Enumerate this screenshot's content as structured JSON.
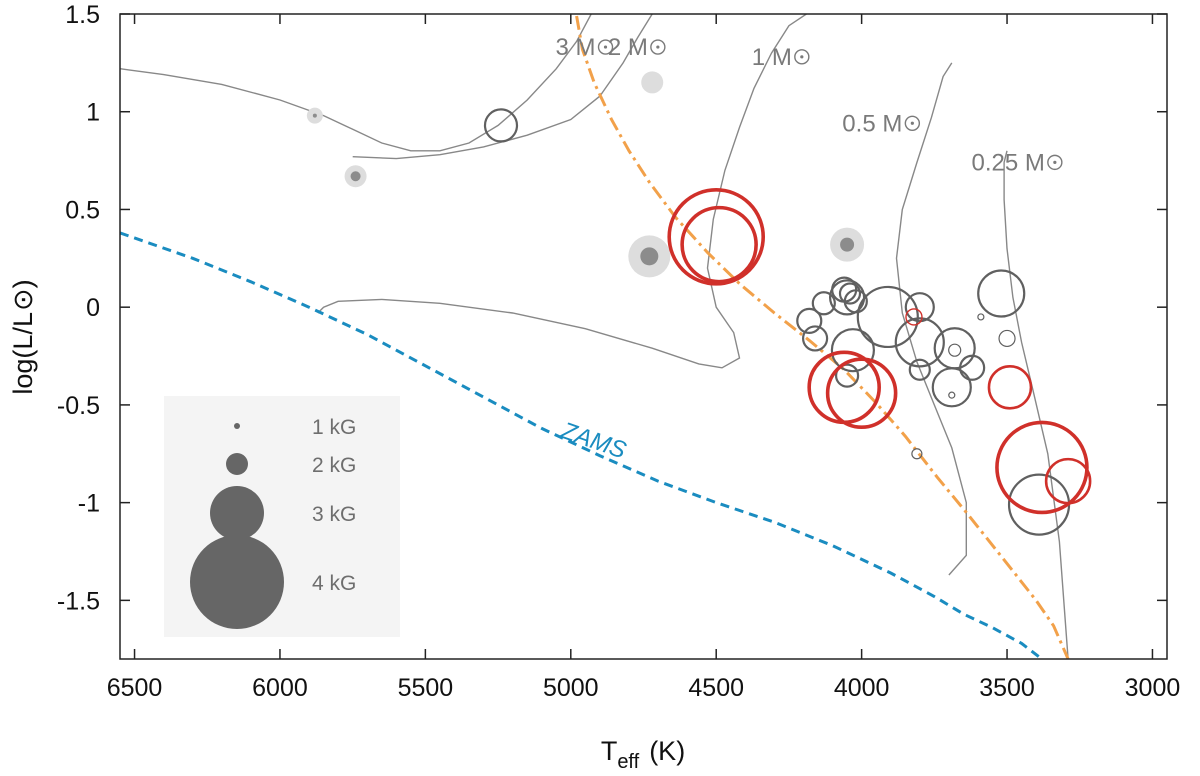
{
  "chart_data": {
    "type": "scatter",
    "title": "",
    "xlabel": {
      "main": "T",
      "sub": "eff",
      "unit": "(K)"
    },
    "ylabel": {
      "main": "log(L/L",
      "close": ")"
    },
    "xlim": [
      6550,
      2950
    ],
    "ylim": [
      -1.8,
      1.5
    ],
    "x_reversed": true,
    "grid": false,
    "xticks": [
      {
        "value": 6500,
        "label": "6500"
      },
      {
        "value": 6000,
        "label": "6000"
      },
      {
        "value": 5500,
        "label": "5500"
      },
      {
        "value": 5000,
        "label": "5000"
      },
      {
        "value": 4500,
        "label": "4500"
      },
      {
        "value": 4000,
        "label": "4000"
      },
      {
        "value": 3500,
        "label": "3500"
      },
      {
        "value": 3000,
        "label": "3000"
      }
    ],
    "yticks": [
      {
        "value": 1.5,
        "label": "1.5"
      },
      {
        "value": 1,
        "label": "1"
      },
      {
        "value": 0.5,
        "label": "0.5"
      },
      {
        "value": 0,
        "label": "0"
      },
      {
        "value": -0.5,
        "label": "-0.5"
      },
      {
        "value": -1,
        "label": "-1"
      },
      {
        "value": -1.5,
        "label": "-1.5"
      }
    ],
    "tracks": [
      {
        "label": "3 M",
        "label_at": [
          4915,
          1.29
        ],
        "color": "#888888",
        "points": [
          [
            6550,
            1.22
          ],
          [
            6400,
            1.19
          ],
          [
            6200,
            1.14
          ],
          [
            6000,
            1.06
          ],
          [
            5850,
            0.98
          ],
          [
            5750,
            0.91
          ],
          [
            5650,
            0.84
          ],
          [
            5550,
            0.8
          ],
          [
            5450,
            0.8
          ],
          [
            5350,
            0.84
          ],
          [
            5250,
            0.93
          ],
          [
            5150,
            1.06
          ],
          [
            5050,
            1.22
          ],
          [
            4980,
            1.36
          ],
          [
            4930,
            1.5
          ]
        ]
      },
      {
        "label": "2 M",
        "label_at": [
          4735,
          1.29
        ],
        "color": "#888888",
        "points": [
          [
            5750,
            0.77
          ],
          [
            5600,
            0.76
          ],
          [
            5450,
            0.78
          ],
          [
            5300,
            0.82
          ],
          [
            5150,
            0.88
          ],
          [
            5000,
            0.96
          ],
          [
            4900,
            1.08
          ],
          [
            4820,
            1.25
          ],
          [
            4770,
            1.38
          ],
          [
            4720,
            1.5
          ]
        ]
      },
      {
        "label": "1 M",
        "label_at": [
          4240,
          1.24
        ],
        "color": "#888888",
        "points": [
          [
            5870,
            -0.03
          ],
          [
            5850,
            0.0
          ],
          [
            5800,
            0.03
          ],
          [
            5650,
            0.04
          ],
          [
            5450,
            0.02
          ],
          [
            5200,
            -0.03
          ],
          [
            4950,
            -0.11
          ],
          [
            4720,
            -0.21
          ],
          [
            4560,
            -0.29
          ],
          [
            4480,
            -0.31
          ],
          [
            4420,
            -0.26
          ],
          [
            4440,
            -0.13
          ],
          [
            4500,
            0.0
          ],
          [
            4530,
            0.2
          ],
          [
            4510,
            0.45
          ],
          [
            4470,
            0.7
          ],
          [
            4420,
            0.92
          ],
          [
            4370,
            1.12
          ],
          [
            4310,
            1.3
          ],
          [
            4250,
            1.44
          ],
          [
            4190,
            1.5
          ]
        ]
      },
      {
        "label": "0.5 M",
        "label_at": [
          3860,
          0.9
        ],
        "color": "#888888",
        "points": [
          [
            3700,
            -1.37
          ],
          [
            3640,
            -1.27
          ],
          [
            3640,
            -1.0
          ],
          [
            3690,
            -0.72
          ],
          [
            3750,
            -0.5
          ],
          [
            3810,
            -0.28
          ],
          [
            3860,
            -0.03
          ],
          [
            3880,
            0.25
          ],
          [
            3860,
            0.5
          ],
          [
            3810,
            0.74
          ],
          [
            3760,
            0.97
          ],
          [
            3720,
            1.18
          ],
          [
            3690,
            1.25
          ]
        ]
      },
      {
        "label": "0.25 M",
        "label_at": [
          3370,
          0.7
        ],
        "color": "#888888",
        "points": [
          [
            3290,
            -1.8
          ],
          [
            3320,
            -1.2
          ],
          [
            3360,
            -0.75
          ],
          [
            3410,
            -0.43
          ],
          [
            3450,
            -0.18
          ],
          [
            3480,
            0.05
          ],
          [
            3500,
            0.3
          ],
          [
            3510,
            0.55
          ],
          [
            3510,
            0.74
          ],
          [
            3500,
            0.8
          ]
        ]
      }
    ],
    "zams": {
      "label": "ZAMS",
      "label_at": [
        4930,
        -0.72
      ],
      "label_rotation": 19,
      "color": "#1a8cc0",
      "points": [
        [
          6550,
          0.38
        ],
        [
          6300,
          0.25
        ],
        [
          6100,
          0.13
        ],
        [
          5900,
          0.0
        ],
        [
          5700,
          -0.14
        ],
        [
          5500,
          -0.3
        ],
        [
          5300,
          -0.46
        ],
        [
          5100,
          -0.62
        ],
        [
          4900,
          -0.76
        ],
        [
          4700,
          -0.89
        ],
        [
          4500,
          -1.0
        ],
        [
          4300,
          -1.1
        ],
        [
          4100,
          -1.22
        ],
        [
          3900,
          -1.36
        ],
        [
          3750,
          -1.48
        ],
        [
          3650,
          -1.57
        ],
        [
          3550,
          -1.64
        ],
        [
          3450,
          -1.72
        ],
        [
          3380,
          -1.8
        ]
      ]
    },
    "dashdot": {
      "color": "#f2a14a",
      "points": [
        [
          4980,
          1.49
        ],
        [
          4960,
          1.32
        ],
        [
          4920,
          1.15
        ],
        [
          4860,
          0.96
        ],
        [
          4800,
          0.8
        ],
        [
          4730,
          0.64
        ],
        [
          4640,
          0.46
        ],
        [
          4530,
          0.28
        ],
        [
          4420,
          0.12
        ],
        [
          4300,
          -0.03
        ],
        [
          4180,
          -0.17
        ],
        [
          4060,
          -0.32
        ],
        [
          3950,
          -0.49
        ],
        [
          3850,
          -0.66
        ],
        [
          3740,
          -0.87
        ],
        [
          3640,
          -1.05
        ],
        [
          3560,
          -1.2
        ],
        [
          3480,
          -1.35
        ],
        [
          3400,
          -1.5
        ],
        [
          3340,
          -1.63
        ],
        [
          3290,
          -1.8
        ]
      ]
    },
    "series": [
      {
        "style": "filled-grey",
        "points": [
          {
            "t": 5880,
            "logL": 0.98,
            "halo_r": 8,
            "core_r": 2
          },
          {
            "t": 5740,
            "logL": 0.67,
            "halo_r": 11,
            "core_r": 5
          },
          {
            "t": 4720,
            "logL": 1.15,
            "halo_r": 11,
            "core_r": 0
          },
          {
            "t": 4730,
            "logL": 0.26,
            "halo_r": 21,
            "core_r": 9
          },
          {
            "t": 4050,
            "logL": 0.32,
            "halo_r": 17,
            "core_r": 7
          }
        ]
      },
      {
        "style": "open-dark",
        "points": [
          {
            "t": 5240,
            "logL": 0.93,
            "r": 16
          },
          {
            "t": 4060,
            "logL": 0.09,
            "r": 12
          },
          {
            "t": 4050,
            "logL": 0.05,
            "r": 17
          },
          {
            "t": 4040,
            "logL": 0.07,
            "r": 10
          },
          {
            "t": 4020,
            "logL": 0.03,
            "r": 11
          },
          {
            "t": 4130,
            "logL": 0.02,
            "r": 11
          },
          {
            "t": 4180,
            "logL": -0.07,
            "r": 12
          },
          {
            "t": 4160,
            "logL": -0.16,
            "r": 12
          },
          {
            "t": 4030,
            "logL": -0.22,
            "r": 21
          },
          {
            "t": 4050,
            "logL": -0.35,
            "r": 11
          },
          {
            "t": 3910,
            "logL": -0.05,
            "r": 30
          },
          {
            "t": 3800,
            "logL": 0.0,
            "r": 14
          },
          {
            "t": 3800,
            "logL": -0.18,
            "r": 24
          },
          {
            "t": 3800,
            "logL": -0.32,
            "r": 10
          },
          {
            "t": 3680,
            "logL": -0.21,
            "r": 20
          },
          {
            "t": 3690,
            "logL": -0.41,
            "r": 19
          },
          {
            "t": 3620,
            "logL": -0.31,
            "r": 12
          },
          {
            "t": 3520,
            "logL": 0.07,
            "r": 23
          },
          {
            "t": 3500,
            "logL": -0.16,
            "r": 8
          },
          {
            "t": 3390,
            "logL": -1.01,
            "r": 30
          },
          {
            "t": 3680,
            "logL": -0.22,
            "r": 6
          },
          {
            "t": 3810,
            "logL": -0.75,
            "r": 5
          },
          {
            "t": 3590,
            "logL": -0.05,
            "r": 3
          },
          {
            "t": 3690,
            "logL": -0.45,
            "r": 3
          }
        ]
      },
      {
        "style": "open-red",
        "points": [
          {
            "t": 4500,
            "logL": 0.36,
            "r": 47
          },
          {
            "t": 4490,
            "logL": 0.32,
            "r": 37
          },
          {
            "t": 4060,
            "logL": -0.41,
            "r": 35
          },
          {
            "t": 4000,
            "logL": -0.44,
            "r": 34
          },
          {
            "t": 3380,
            "logL": -0.82,
            "r": 45
          },
          {
            "t": 3290,
            "logL": -0.89,
            "r": 22
          },
          {
            "t": 3490,
            "logL": -0.41,
            "r": 21
          },
          {
            "t": 3820,
            "logL": -0.05,
            "r": 8
          }
        ]
      }
    ],
    "legend": {
      "placement": "bottom-left",
      "items": [
        {
          "label": "1 kG",
          "r": 3
        },
        {
          "label": "2 kG",
          "r": 11
        },
        {
          "label": "3 kG",
          "r": 27
        },
        {
          "label": "4 kG",
          "r": 47
        }
      ]
    },
    "colors": {
      "track": "#888888",
      "zams": "#1a8cc0",
      "dashdot": "#f2a14a",
      "open_dark": "#606060",
      "open_red": "#d0302a",
      "filled_core": "#8c8c8c",
      "filled_halo": "#dddddd",
      "legend_box": "#f4f4f4",
      "legend_marker": "#666666"
    }
  }
}
